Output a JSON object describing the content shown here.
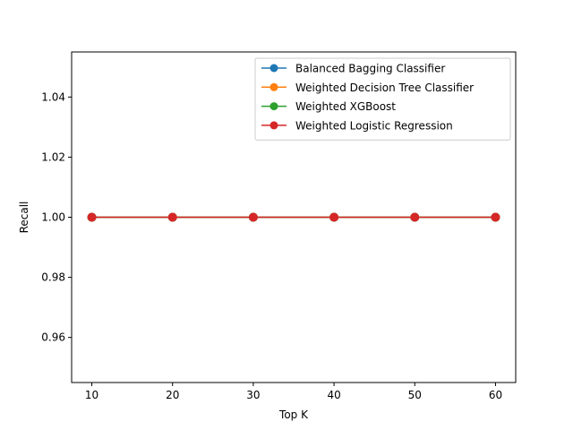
{
  "chart_data": {
    "type": "line",
    "title": "",
    "xlabel": "Top K",
    "ylabel": "Recall",
    "xlim": [
      7.5,
      62.5
    ],
    "ylim": [
      0.945,
      1.055
    ],
    "xticks": [
      10,
      20,
      30,
      40,
      50,
      60
    ],
    "xtick_labels": [
      "10",
      "20",
      "30",
      "40",
      "50",
      "60"
    ],
    "yticks": [
      0.96,
      0.98,
      1.0,
      1.02,
      1.04
    ],
    "ytick_labels": [
      "0.96",
      "0.98",
      "1.00",
      "1.02",
      "1.04"
    ],
    "grid": false,
    "legend_position": "upper right",
    "x": [
      10,
      20,
      30,
      40,
      50,
      60
    ],
    "series": [
      {
        "name": "Balanced Bagging Classifier",
        "color": "#1f77b4",
        "marker": "circle",
        "values": [
          1.0,
          1.0,
          1.0,
          1.0,
          1.0,
          1.0
        ]
      },
      {
        "name": "Weighted Decision Tree Classifier",
        "color": "#ff7f0e",
        "marker": "circle",
        "values": [
          1.0,
          1.0,
          1.0,
          1.0,
          1.0,
          1.0
        ]
      },
      {
        "name": "Weighted XGBoost",
        "color": "#2ca02c",
        "marker": "circle",
        "values": [
          1.0,
          1.0,
          1.0,
          1.0,
          1.0,
          1.0
        ]
      },
      {
        "name": "Weighted Logistic Regression",
        "color": "#d62728",
        "marker": "circle",
        "values": [
          1.0,
          1.0,
          1.0,
          1.0,
          1.0,
          1.0
        ]
      }
    ]
  }
}
